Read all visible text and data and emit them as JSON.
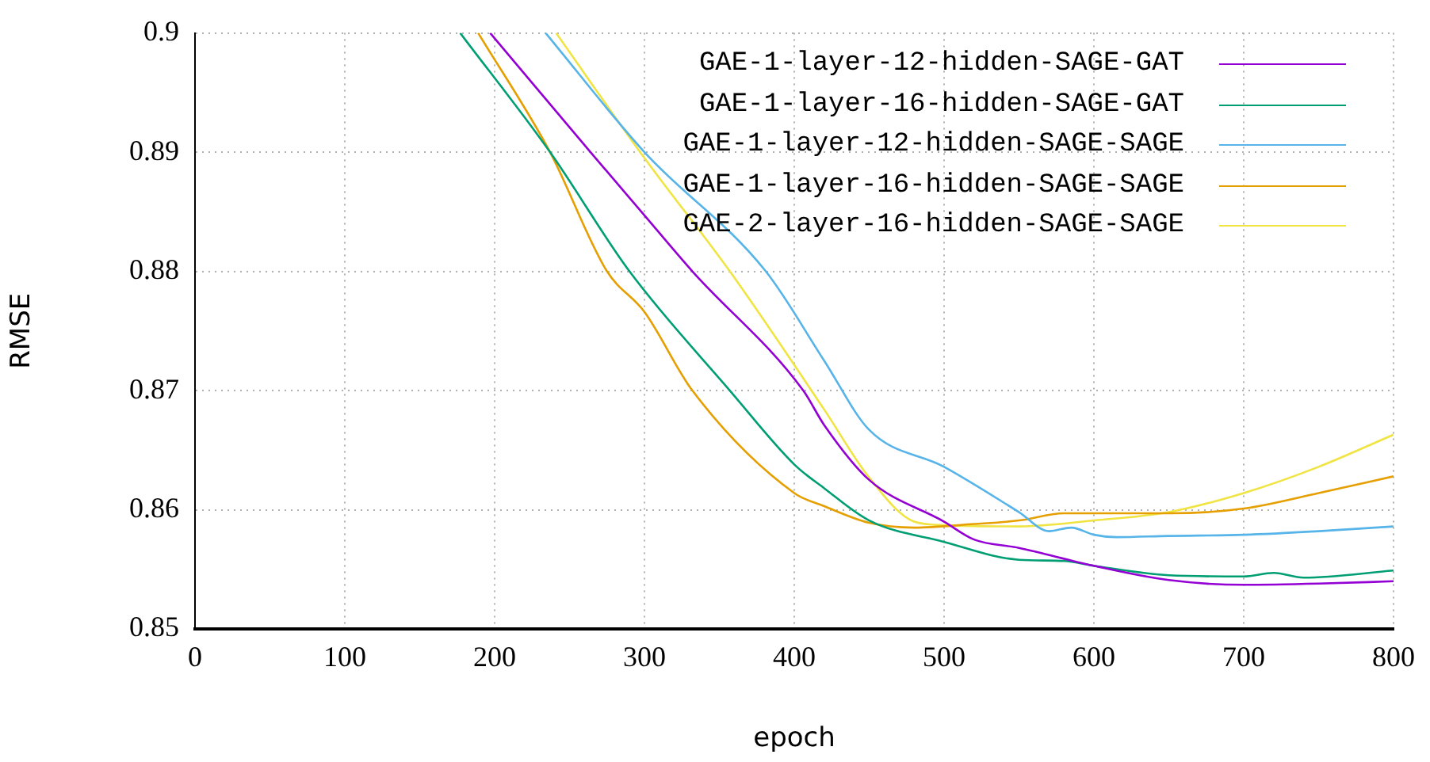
{
  "chart_data": {
    "type": "line",
    "xlabel": "epoch",
    "ylabel": "RMSE",
    "xlim": [
      0,
      800
    ],
    "ylim": [
      0.85,
      0.9
    ],
    "xticks": [
      0,
      100,
      200,
      300,
      400,
      500,
      600,
      700,
      800
    ],
    "yticks": [
      0.85,
      0.86,
      0.87,
      0.88,
      0.89,
      0.9
    ],
    "grid": true,
    "legend": "top right",
    "marker": "none",
    "line_style": "solid",
    "series": [
      {
        "name": "GAE-1-layer-12-hidden-SAGE-GAT",
        "color": "#9400d3",
        "x": [
          197,
          264,
          300,
          332,
          406,
          420,
          450,
          500,
          520,
          550,
          600,
          650,
          700,
          750,
          800
        ],
        "values": [
          0.9,
          0.89,
          0.8847,
          0.88,
          0.87,
          0.8671,
          0.8625,
          0.859,
          0.8575,
          0.8568,
          0.8553,
          0.8541,
          0.8537,
          0.8538,
          0.854
        ]
      },
      {
        "name": "GAE-1-layer-16-hidden-SAGE-GAT",
        "color": "#009e73",
        "x": [
          177,
          237,
          290,
          357,
          400,
          420,
          450,
          500,
          550,
          580,
          600,
          650,
          700,
          720,
          740,
          800
        ],
        "values": [
          0.9,
          0.89,
          0.88,
          0.87,
          0.8638,
          0.8618,
          0.8591,
          0.8573,
          0.8558,
          0.8557,
          0.8553,
          0.8545,
          0.8544,
          0.8547,
          0.8543,
          0.8549
        ]
      },
      {
        "name": "GAE-1-layer-12-hidden-SAGE-SAGE",
        "color": "#56b4e9",
        "x": [
          234,
          300,
          381,
          420,
          450,
          500,
          550,
          570,
          585,
          600,
          615,
          650,
          700,
          750,
          800
        ],
        "values": [
          0.9,
          0.89,
          0.88,
          0.8725,
          0.8667,
          0.8636,
          0.8598,
          0.8582,
          0.8585,
          0.8579,
          0.8577,
          0.8578,
          0.8579,
          0.8582,
          0.8586
        ]
      },
      {
        "name": "GAE-1-layer-16-hidden-SAGE-SAGE",
        "color": "#e69f00",
        "x": [
          189,
          237,
          275,
          300,
          332,
          400,
          420,
          450,
          480,
          520,
          550,
          580,
          650,
          700,
          750,
          800
        ],
        "values": [
          0.9,
          0.89,
          0.88,
          0.8766,
          0.87,
          0.8614,
          0.8603,
          0.8589,
          0.8585,
          0.8588,
          0.8591,
          0.8597,
          0.8597,
          0.8601,
          0.8614,
          0.8628
        ]
      },
      {
        "name": "GAE-2-layer-16-hidden-SAGE-SAGE",
        "color": "#f0e442",
        "x": [
          241,
          300,
          357,
          420,
          450,
          480,
          500,
          550,
          600,
          650,
          700,
          750,
          800
        ],
        "values": [
          0.9,
          0.8895,
          0.88,
          0.8684,
          0.8627,
          0.859,
          0.8587,
          0.8586,
          0.8591,
          0.8598,
          0.8614,
          0.8636,
          0.8663
        ]
      }
    ]
  }
}
